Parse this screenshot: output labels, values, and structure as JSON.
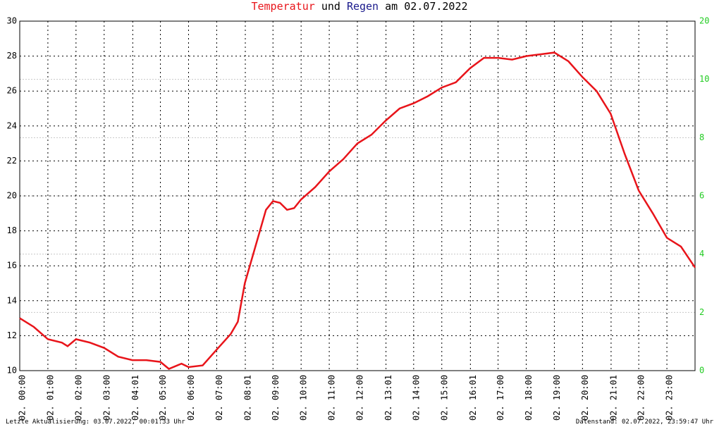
{
  "chart_data": {
    "type": "line",
    "title_connector": "und",
    "title_suffix": "am 02.07.2022",
    "x": [
      0,
      0.5,
      1,
      1.5,
      1.7,
      2,
      2.5,
      3,
      3.5,
      4,
      4.5,
      5,
      5.3,
      5.75,
      6,
      6.5,
      7,
      7.5,
      7.75,
      8,
      8.5,
      8.75,
      9,
      9.25,
      9.5,
      9.75,
      10,
      10.5,
      11,
      11.5,
      12,
      12.5,
      13,
      13.5,
      14,
      14.5,
      15,
      15.5,
      16,
      16.5,
      17,
      17.5,
      18,
      18.5,
      19,
      19.5,
      20,
      20.5,
      21,
      21.5,
      22,
      22.5,
      23,
      23.5,
      24
    ],
    "series": [
      {
        "name": "Temperatur",
        "color": "#e8141a",
        "values": [
          13.0,
          12.5,
          11.8,
          11.6,
          11.4,
          11.8,
          11.6,
          11.3,
          10.8,
          10.6,
          10.6,
          10.5,
          10.1,
          10.4,
          10.2,
          10.3,
          11.2,
          12.1,
          12.8,
          15.0,
          17.8,
          19.2,
          19.7,
          19.6,
          19.2,
          19.3,
          19.8,
          20.5,
          21.4,
          22.1,
          23.0,
          23.5,
          24.3,
          25.0,
          25.3,
          25.7,
          26.2,
          26.5,
          27.3,
          27.9,
          27.9,
          27.8,
          28.0,
          28.1,
          28.2,
          27.7,
          26.8,
          26.0,
          24.7,
          22.4,
          20.3,
          19.0,
          17.6,
          17.1,
          15.9
        ]
      },
      {
        "name": "Regen",
        "color": "#1a1a8c",
        "axis": "y2",
        "values": [
          0,
          null,
          null,
          null,
          null,
          null,
          null,
          null,
          null,
          null,
          null,
          null,
          null,
          null,
          null,
          null,
          null,
          null,
          null,
          null,
          null,
          null,
          null,
          null,
          null,
          null,
          null,
          null,
          null,
          null,
          null,
          null,
          null,
          null,
          null,
          null,
          null,
          null,
          null,
          null,
          null,
          null,
          null,
          null,
          null,
          null,
          null,
          null,
          null,
          null,
          null,
          null,
          null,
          null,
          0
        ]
      }
    ],
    "xlim": [
      0,
      24
    ],
    "xticks": [
      {
        "value": 0,
        "label": "02. 00:00"
      },
      {
        "value": 1,
        "label": "02. 01:00"
      },
      {
        "value": 2,
        "label": "02. 02:00"
      },
      {
        "value": 3,
        "label": "02. 03:00"
      },
      {
        "value": 4.0167,
        "label": "02. 04:01"
      },
      {
        "value": 5,
        "label": "02. 05:00"
      },
      {
        "value": 6,
        "label": "02. 06:00"
      },
      {
        "value": 7,
        "label": "02. 07:00"
      },
      {
        "value": 8.0167,
        "label": "02. 08:01"
      },
      {
        "value": 9,
        "label": "02. 09:00"
      },
      {
        "value": 10,
        "label": "02. 10:00"
      },
      {
        "value": 11,
        "label": "02. 11:00"
      },
      {
        "value": 12,
        "label": "02. 12:00"
      },
      {
        "value": 13.0167,
        "label": "02. 13:01"
      },
      {
        "value": 14,
        "label": "02. 14:00"
      },
      {
        "value": 15,
        "label": "02. 15:00"
      },
      {
        "value": 16.0167,
        "label": "02. 16:01"
      },
      {
        "value": 17,
        "label": "02. 17:00"
      },
      {
        "value": 18,
        "label": "02. 18:00"
      },
      {
        "value": 19,
        "label": "02. 19:00"
      },
      {
        "value": 20,
        "label": "02. 20:00"
      },
      {
        "value": 21.0167,
        "label": "02. 21:01"
      },
      {
        "value": 22,
        "label": "02. 22:00"
      },
      {
        "value": 23,
        "label": "02. 23:00"
      }
    ],
    "ylim": [
      10,
      30
    ],
    "yticks": [
      10,
      12,
      14,
      16,
      18,
      20,
      22,
      24,
      26,
      28,
      30
    ],
    "y2lim": [
      0,
      12
    ],
    "y2ticks": [
      0,
      2,
      4,
      6,
      8,
      10
    ],
    "y2_top_label": "20",
    "y2_color": "#22cc22",
    "grid": true,
    "footer_left": "Letzte Aktualisierung: 03.07.2022, 00:01:33 Uhr",
    "footer_right": "Datenstand: 02.07.2022, 23:59:47 Uhr"
  }
}
